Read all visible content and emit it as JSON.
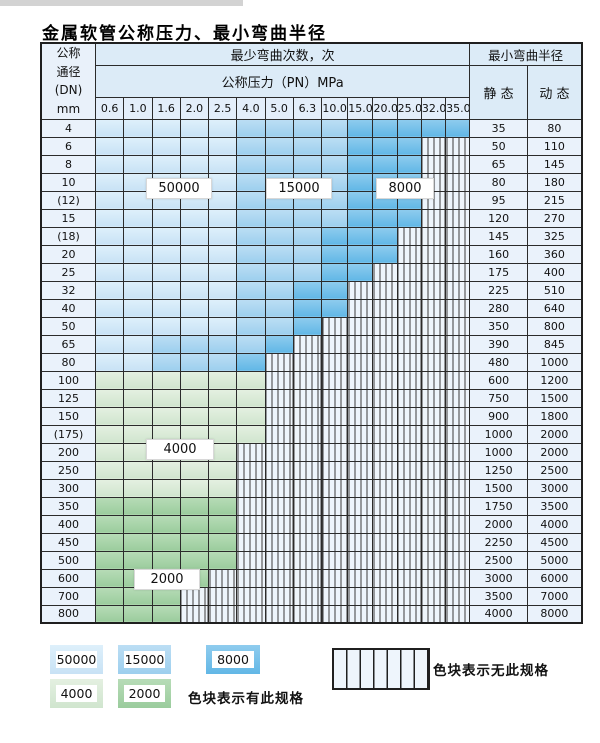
{
  "title": "金属软管公称压力、最小弯曲半径",
  "table": {
    "dn_header_lines": [
      "公称",
      "通径",
      "(DN)",
      "mm"
    ],
    "cycles_header": "最少弯曲次数，次",
    "pressure_header": "公称压力（PN）MPa",
    "pressures": [
      "0.6",
      "1.0",
      "1.6",
      "2.0",
      "2.5",
      "4.0",
      "5.0",
      "6.3",
      "10.0",
      "15.0",
      "20.0",
      "25.0",
      "32.0",
      "35.0"
    ],
    "radius_header": "最小弯曲半径",
    "static_header": "静 态",
    "dynamic_header": "动 态",
    "cell_codes": {
      "L": "50000",
      "M": "15000",
      "D": "8000",
      "P": "4000",
      "G": "2000",
      "H": "no-spec-hatched"
    },
    "rows": [
      {
        "dn": "4",
        "cells": "LLLLLMMMMDDDDD",
        "static": "35",
        "dynamic": "80"
      },
      {
        "dn": "6",
        "cells": "LLLLLMMMMDDDHH",
        "static": "50",
        "dynamic": "110"
      },
      {
        "dn": "8",
        "cells": "LLLLLMMMMDDDHH",
        "static": "65",
        "dynamic": "145"
      },
      {
        "dn": "10",
        "cells": "LLLLLMMMMDDDHH",
        "static": "80",
        "dynamic": "180"
      },
      {
        "dn": "(12)",
        "cells": "LLLLLMMMMDDDHH",
        "static": "95",
        "dynamic": "215"
      },
      {
        "dn": "15",
        "cells": "LLLLLMMMMDDDHH",
        "static": "120",
        "dynamic": "270"
      },
      {
        "dn": "(18)",
        "cells": "LLLLLMMMDDDHHH",
        "static": "145",
        "dynamic": "325"
      },
      {
        "dn": "20",
        "cells": "LLLLLMMMDDDHHH",
        "static": "160",
        "dynamic": "360"
      },
      {
        "dn": "25",
        "cells": "LLLLLMMMDDHHHH",
        "static": "175",
        "dynamic": "400"
      },
      {
        "dn": "32",
        "cells": "LLLLLMMDDHHHHH",
        "static": "225",
        "dynamic": "510"
      },
      {
        "dn": "40",
        "cells": "LLLLLMMDDHHHHH",
        "static": "280",
        "dynamic": "640"
      },
      {
        "dn": "50",
        "cells": "LLLLLMMDHHHHHH",
        "static": "350",
        "dynamic": "800"
      },
      {
        "dn": "65",
        "cells": "LLMMMMDHHHHHHH",
        "static": "390",
        "dynamic": "845"
      },
      {
        "dn": "80",
        "cells": "LLMMMDHHHHHHHH",
        "static": "480",
        "dynamic": "1000"
      },
      {
        "dn": "100",
        "cells": "PPPPPPHHHHHHHH",
        "static": "600",
        "dynamic": "1200"
      },
      {
        "dn": "125",
        "cells": "PPPPPPHHHHHHHH",
        "static": "750",
        "dynamic": "1500"
      },
      {
        "dn": "150",
        "cells": "PPPPPPHHHHHHHH",
        "static": "900",
        "dynamic": "1800"
      },
      {
        "dn": "(175)",
        "cells": "PPPPPPHHHHHHHH",
        "static": "1000",
        "dynamic": "2000"
      },
      {
        "dn": "200",
        "cells": "PPPPPHHHHHHHHH",
        "static": "1000",
        "dynamic": "2000"
      },
      {
        "dn": "250",
        "cells": "PPPPPHHHHHHHHH",
        "static": "1250",
        "dynamic": "2500"
      },
      {
        "dn": "300",
        "cells": "PPPPPHHHHHHHHH",
        "static": "1500",
        "dynamic": "3000"
      },
      {
        "dn": "350",
        "cells": "GGGGGHHHHHHHHH",
        "static": "1750",
        "dynamic": "3500"
      },
      {
        "dn": "400",
        "cells": "GGGGGHHHHHHHHH",
        "static": "2000",
        "dynamic": "4000"
      },
      {
        "dn": "450",
        "cells": "GGGGGHHHHHHHHH",
        "static": "2250",
        "dynamic": "4500"
      },
      {
        "dn": "500",
        "cells": "GGGGGHHHHHHHHH",
        "static": "2500",
        "dynamic": "5000"
      },
      {
        "dn": "600",
        "cells": "GGGGHHHHHHHHHH",
        "static": "3000",
        "dynamic": "6000"
      },
      {
        "dn": "700",
        "cells": "GGGHHHHHHHHHHH",
        "static": "3500",
        "dynamic": "7000"
      },
      {
        "dn": "800",
        "cells": "GGGHHHHHHHHHHH",
        "static": "4000",
        "dynamic": "8000"
      }
    ]
  },
  "overlay_labels": {
    "cycles_50000": "50000",
    "cycles_15000": "15000",
    "cycles_8000": "8000",
    "cycles_4000": "4000",
    "cycles_2000": "2000"
  },
  "legend": {
    "items": [
      {
        "value": "50000",
        "code": "L"
      },
      {
        "value": "15000",
        "code": "M"
      },
      {
        "value": "8000",
        "code": "D"
      },
      {
        "value": "4000",
        "code": "P"
      },
      {
        "value": "2000",
        "code": "G"
      }
    ],
    "has_spec_text": "色块表示有此规格",
    "no_spec_text": "色块表示无此规格"
  },
  "colors": {
    "cycles_50000": "#c8e2f5",
    "cycles_15000": "#9dcfee",
    "cycles_8000": "#62b7e6",
    "cycles_4000": "#d0e5ce",
    "cycles_2000": "#9bcc9d",
    "hatch_bg": "#eef5fc",
    "header_bg": "#dcebf7",
    "border": "#2b2b2b"
  }
}
